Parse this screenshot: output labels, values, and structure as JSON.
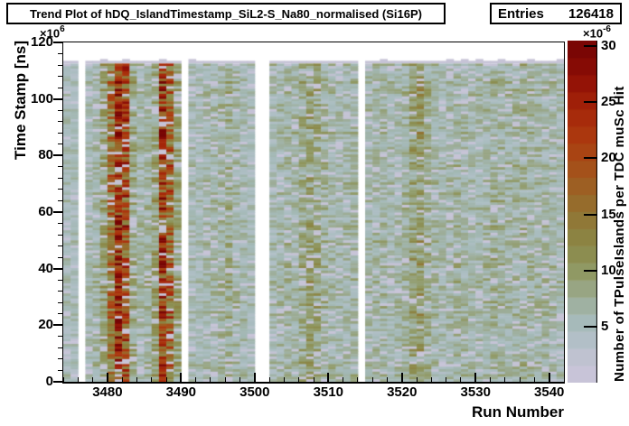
{
  "ui": {
    "title": "Trend Plot of hDQ_IslandTimestamp_SiL2-S_Na80_normalised (Si16P)",
    "stats": {
      "entries_label": "Entries",
      "entries_value": "126418"
    },
    "y_axis_multiplier": {
      "base": "×10",
      "exp": "6"
    },
    "z_axis_multiplier": {
      "base": "×10",
      "exp": "-6"
    }
  },
  "chart_data": {
    "type": "heatmap",
    "title": "Trend Plot of hDQ_IslandTimestamp_SiL2-S_Na80_normalised (Si16P)",
    "entries": 126418,
    "xlabel": "Run Number",
    "ylabel": "Time Stamp [ns]",
    "zlabel": "Number of TPulseIslands per TDC muSc Hit",
    "x_range": [
      3474,
      3542
    ],
    "x_major_ticks": [
      3480,
      3490,
      3500,
      3510,
      3520,
      3530,
      3540
    ],
    "x_minor_tick_step": 2,
    "y_range": [
      0,
      120
    ],
    "y_unit": "1e6 ns",
    "y_major_ticks": [
      0,
      20,
      40,
      60,
      80,
      100,
      120
    ],
    "y_minor_tick_step": 4,
    "data_top_y": 113.5,
    "z_range": [
      0,
      30.5
    ],
    "z_unit": "1e-6",
    "z_major_ticks": [
      5,
      10,
      15,
      20,
      25,
      30
    ],
    "palette_steps": 20,
    "legend_position": "right",
    "grid": false,
    "missing_runs": [
      3476,
      3490,
      3500,
      3501,
      3514
    ],
    "run_numbers": [
      3474,
      3475,
      3477,
      3478,
      3479,
      3480,
      3481,
      3482,
      3483,
      3484,
      3485,
      3486,
      3487,
      3488,
      3489,
      3491,
      3492,
      3493,
      3494,
      3495,
      3496,
      3497,
      3498,
      3499,
      3502,
      3503,
      3504,
      3505,
      3506,
      3507,
      3508,
      3509,
      3510,
      3511,
      3512,
      3513,
      3515,
      3516,
      3517,
      3518,
      3519,
      3520,
      3521,
      3522,
      3523,
      3524,
      3525,
      3526,
      3527,
      3528,
      3529,
      3530,
      3531,
      3532,
      3533,
      3534,
      3535,
      3536,
      3537,
      3538,
      3539,
      3540,
      3541
    ],
    "run_mean_values": [
      5.2,
      5.0,
      5.4,
      6.2,
      8.8,
      13.5,
      21.0,
      17.5,
      8.0,
      6.2,
      6.6,
      9.2,
      19.5,
      15.0,
      8.6,
      5.6,
      5.2,
      5.8,
      6.0,
      6.8,
      7.4,
      6.2,
      5.6,
      5.2,
      5.8,
      6.0,
      6.4,
      6.2,
      7.6,
      8.6,
      8.2,
      6.6,
      6.2,
      5.8,
      6.0,
      6.4,
      6.0,
      6.4,
      6.2,
      5.6,
      6.0,
      6.6,
      8.6,
      9.6,
      7.2,
      6.2,
      5.8,
      6.0,
      6.6,
      6.2,
      5.8,
      6.0,
      6.4,
      7.0,
      6.6,
      6.2,
      6.6,
      7.0,
      6.6,
      6.2,
      6.4,
      6.2,
      5.6
    ],
    "palette_stops": [
      [
        0,
        "#cbc5dc"
      ],
      [
        2,
        "#c2c2d2"
      ],
      [
        4,
        "#b0bfc6"
      ],
      [
        5,
        "#a8bcbe"
      ],
      [
        6,
        "#a2b7b2"
      ],
      [
        7,
        "#9fb0a0"
      ],
      [
        8,
        "#9aa88c"
      ],
      [
        9,
        "#94a076"
      ],
      [
        10,
        "#909862"
      ],
      [
        11,
        "#8d9054"
      ],
      [
        12,
        "#8b8a4a"
      ],
      [
        13,
        "#8c8342"
      ],
      [
        14,
        "#8f7c3a"
      ],
      [
        15,
        "#927433"
      ],
      [
        16,
        "#966c2c"
      ],
      [
        17,
        "#9b6426"
      ],
      [
        18,
        "#9f5b20"
      ],
      [
        19,
        "#a4521a"
      ],
      [
        20,
        "#a84915"
      ],
      [
        21,
        "#aa4011"
      ],
      [
        22,
        "#ab380e"
      ],
      [
        23,
        "#aa300c"
      ],
      [
        24,
        "#a6280a"
      ],
      [
        25,
        "#a02008"
      ],
      [
        26,
        "#991807"
      ],
      [
        27,
        "#911106"
      ],
      [
        28,
        "#880c05"
      ],
      [
        29,
        "#7f0804"
      ],
      [
        30.5,
        "#750404"
      ]
    ]
  }
}
